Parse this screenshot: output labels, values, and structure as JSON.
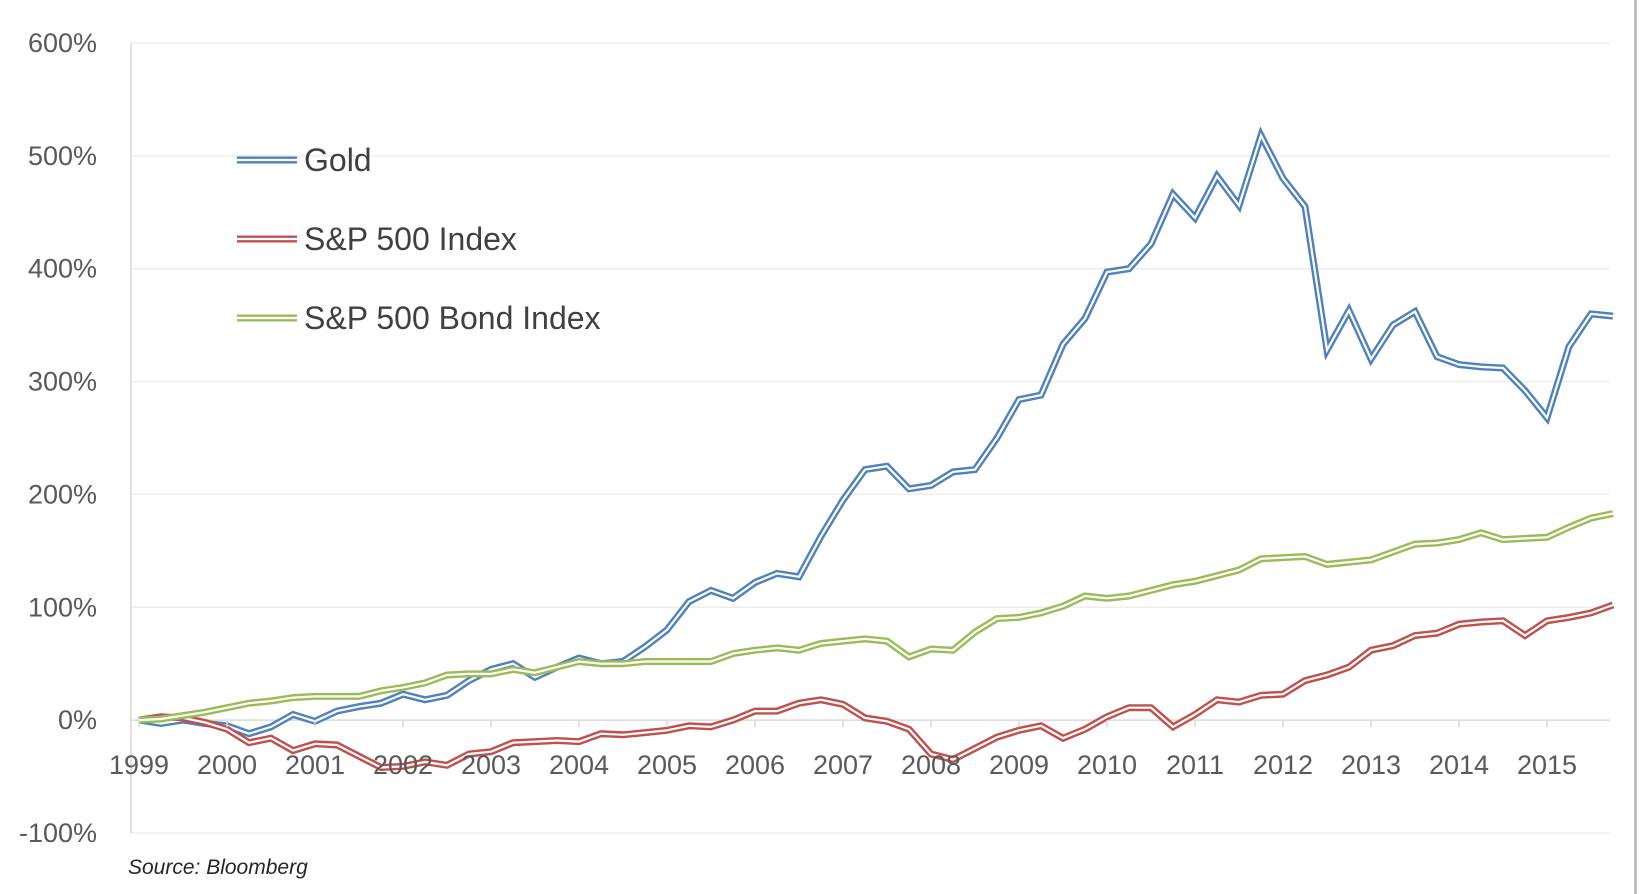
{
  "source_note": "Source: Bloomberg",
  "chart_data": {
    "type": "line",
    "title": "",
    "xlabel": "",
    "ylabel": "",
    "ylim": [
      -100,
      600
    ],
    "xlim": [
      1999,
      2015.85
    ],
    "grid": true,
    "legend_position": "top-left",
    "yticks": [
      {
        "value": 600,
        "label": "600%"
      },
      {
        "value": 500,
        "label": "500%"
      },
      {
        "value": 400,
        "label": "400%"
      },
      {
        "value": 300,
        "label": "300%"
      },
      {
        "value": 200,
        "label": "200%"
      },
      {
        "value": 100,
        "label": "100%"
      },
      {
        "value": 0,
        "label": "0%"
      },
      {
        "value": -100,
        "label": "-100%"
      }
    ],
    "xticks": [
      "1999",
      "2000",
      "2001",
      "2002",
      "2003",
      "2004",
      "2005",
      "2006",
      "2007",
      "2008",
      "2009",
      "2010",
      "2011",
      "2012",
      "2013",
      "2014",
      "2015"
    ],
    "series": [
      {
        "name": "Gold",
        "color": "#4f81bd",
        "points": [
          [
            1999.0,
            0
          ],
          [
            1999.25,
            -3
          ],
          [
            1999.5,
            0
          ],
          [
            1999.75,
            -3
          ],
          [
            2000.0,
            -5
          ],
          [
            2000.25,
            -12
          ],
          [
            2000.5,
            -6
          ],
          [
            2000.75,
            5
          ],
          [
            2001.0,
            -1
          ],
          [
            2001.25,
            8
          ],
          [
            2001.5,
            12
          ],
          [
            2001.75,
            15
          ],
          [
            2002.0,
            23
          ],
          [
            2002.25,
            18
          ],
          [
            2002.5,
            22
          ],
          [
            2002.75,
            35
          ],
          [
            2003.0,
            45
          ],
          [
            2003.25,
            50
          ],
          [
            2003.5,
            38
          ],
          [
            2003.75,
            47
          ],
          [
            2004.0,
            55
          ],
          [
            2004.25,
            50
          ],
          [
            2004.5,
            52
          ],
          [
            2004.75,
            65
          ],
          [
            2005.0,
            80
          ],
          [
            2005.25,
            105
          ],
          [
            2005.5,
            115
          ],
          [
            2005.75,
            108
          ],
          [
            2006.0,
            122
          ],
          [
            2006.25,
            130
          ],
          [
            2006.5,
            127
          ],
          [
            2006.75,
            163
          ],
          [
            2007.0,
            195
          ],
          [
            2007.25,
            222
          ],
          [
            2007.5,
            225
          ],
          [
            2007.75,
            205
          ],
          [
            2008.0,
            208
          ],
          [
            2008.25,
            220
          ],
          [
            2008.5,
            222
          ],
          [
            2008.75,
            250
          ],
          [
            2009.0,
            284
          ],
          [
            2009.25,
            288
          ],
          [
            2009.5,
            333
          ],
          [
            2009.75,
            356
          ],
          [
            2010.0,
            397
          ],
          [
            2010.25,
            400
          ],
          [
            2010.5,
            422
          ],
          [
            2010.75,
            466
          ],
          [
            2011.0,
            445
          ],
          [
            2011.25,
            482
          ],
          [
            2011.5,
            456
          ],
          [
            2011.75,
            518
          ],
          [
            2012.0,
            480
          ],
          [
            2012.25,
            455
          ],
          [
            2012.5,
            328
          ],
          [
            2012.75,
            363
          ],
          [
            2013.0,
            320
          ],
          [
            2013.25,
            350
          ],
          [
            2013.5,
            362
          ],
          [
            2013.75,
            322
          ],
          [
            2014.0,
            315
          ],
          [
            2014.25,
            313
          ],
          [
            2014.5,
            312
          ],
          [
            2014.75,
            292
          ],
          [
            2015.0,
            268
          ],
          [
            2015.25,
            331
          ],
          [
            2015.5,
            360
          ],
          [
            2015.75,
            358
          ]
        ]
      },
      {
        "name": "S&P 500 Index",
        "color": "#c0504d",
        "points": [
          [
            1999.0,
            0
          ],
          [
            1999.25,
            3
          ],
          [
            1999.5,
            2
          ],
          [
            1999.75,
            -2
          ],
          [
            2000.0,
            -8
          ],
          [
            2000.25,
            -20
          ],
          [
            2000.5,
            -16
          ],
          [
            2000.75,
            -27
          ],
          [
            2001.0,
            -21
          ],
          [
            2001.25,
            -22
          ],
          [
            2001.5,
            -32
          ],
          [
            2001.75,
            -42
          ],
          [
            2002.0,
            -41
          ],
          [
            2002.25,
            -37
          ],
          [
            2002.5,
            -40
          ],
          [
            2002.75,
            -30
          ],
          [
            2003.0,
            -28
          ],
          [
            2003.25,
            -20
          ],
          [
            2003.5,
            -19
          ],
          [
            2003.75,
            -18
          ],
          [
            2004.0,
            -19
          ],
          [
            2004.25,
            -12
          ],
          [
            2004.5,
            -13
          ],
          [
            2004.75,
            -11
          ],
          [
            2005.0,
            -9
          ],
          [
            2005.25,
            -5
          ],
          [
            2005.5,
            -6
          ],
          [
            2005.75,
            0
          ],
          [
            2006.0,
            8
          ],
          [
            2006.25,
            8
          ],
          [
            2006.5,
            15
          ],
          [
            2006.75,
            18
          ],
          [
            2007.0,
            14
          ],
          [
            2007.25,
            2
          ],
          [
            2007.5,
            -1
          ],
          [
            2007.75,
            -8
          ],
          [
            2008.0,
            -30
          ],
          [
            2008.25,
            -35
          ],
          [
            2008.5,
            -25
          ],
          [
            2008.75,
            -15
          ],
          [
            2009.0,
            -9
          ],
          [
            2009.25,
            -5
          ],
          [
            2009.5,
            -16
          ],
          [
            2009.75,
            -8
          ],
          [
            2010.0,
            3
          ],
          [
            2010.25,
            11
          ],
          [
            2010.5,
            11
          ],
          [
            2010.75,
            -6
          ],
          [
            2011.0,
            5
          ],
          [
            2011.25,
            18
          ],
          [
            2011.5,
            16
          ],
          [
            2011.75,
            22
          ],
          [
            2012.0,
            23
          ],
          [
            2012.25,
            35
          ],
          [
            2012.5,
            40
          ],
          [
            2012.75,
            47
          ],
          [
            2013.0,
            62
          ],
          [
            2013.25,
            66
          ],
          [
            2013.5,
            75
          ],
          [
            2013.75,
            77
          ],
          [
            2014.0,
            85
          ],
          [
            2014.25,
            87
          ],
          [
            2014.5,
            88
          ],
          [
            2014.75,
            75
          ],
          [
            2015.0,
            88
          ],
          [
            2015.25,
            91
          ],
          [
            2015.5,
            95
          ],
          [
            2015.75,
            102
          ]
        ]
      },
      {
        "name": "S&P 500 Bond Index",
        "color": "#9bbb59",
        "points": [
          [
            1999.0,
            0
          ],
          [
            1999.25,
            1
          ],
          [
            1999.5,
            4
          ],
          [
            1999.75,
            7
          ],
          [
            2000.0,
            11
          ],
          [
            2000.25,
            15
          ],
          [
            2000.5,
            17
          ],
          [
            2000.75,
            20
          ],
          [
            2001.0,
            21
          ],
          [
            2001.25,
            21
          ],
          [
            2001.5,
            21
          ],
          [
            2001.75,
            26
          ],
          [
            2002.0,
            29
          ],
          [
            2002.25,
            33
          ],
          [
            2002.5,
            40
          ],
          [
            2002.75,
            41
          ],
          [
            2003.0,
            41
          ],
          [
            2003.25,
            45
          ],
          [
            2003.5,
            42
          ],
          [
            2003.75,
            47
          ],
          [
            2004.0,
            52
          ],
          [
            2004.25,
            50
          ],
          [
            2004.5,
            50
          ],
          [
            2004.75,
            52
          ],
          [
            2005.0,
            52
          ],
          [
            2005.25,
            52
          ],
          [
            2005.5,
            52
          ],
          [
            2005.75,
            59
          ],
          [
            2006.0,
            62
          ],
          [
            2006.25,
            64
          ],
          [
            2006.5,
            62
          ],
          [
            2006.75,
            68
          ],
          [
            2007.0,
            70
          ],
          [
            2007.25,
            72
          ],
          [
            2007.5,
            70
          ],
          [
            2007.75,
            56
          ],
          [
            2008.0,
            63
          ],
          [
            2008.25,
            62
          ],
          [
            2008.5,
            78
          ],
          [
            2008.75,
            90
          ],
          [
            2009.0,
            91
          ],
          [
            2009.25,
            95
          ],
          [
            2009.5,
            101
          ],
          [
            2009.75,
            110
          ],
          [
            2010.0,
            108
          ],
          [
            2010.25,
            110
          ],
          [
            2010.5,
            115
          ],
          [
            2010.75,
            120
          ],
          [
            2011.0,
            123
          ],
          [
            2011.25,
            128
          ],
          [
            2011.5,
            133
          ],
          [
            2011.75,
            143
          ],
          [
            2012.0,
            144
          ],
          [
            2012.25,
            145
          ],
          [
            2012.5,
            138
          ],
          [
            2012.75,
            140
          ],
          [
            2013.0,
            142
          ],
          [
            2013.25,
            149
          ],
          [
            2013.5,
            156
          ],
          [
            2013.75,
            157
          ],
          [
            2014.0,
            160
          ],
          [
            2014.25,
            166
          ],
          [
            2014.5,
            160
          ],
          [
            2014.75,
            161
          ],
          [
            2015.0,
            162
          ],
          [
            2015.25,
            171
          ],
          [
            2015.5,
            179
          ],
          [
            2015.75,
            183
          ]
        ]
      }
    ]
  }
}
